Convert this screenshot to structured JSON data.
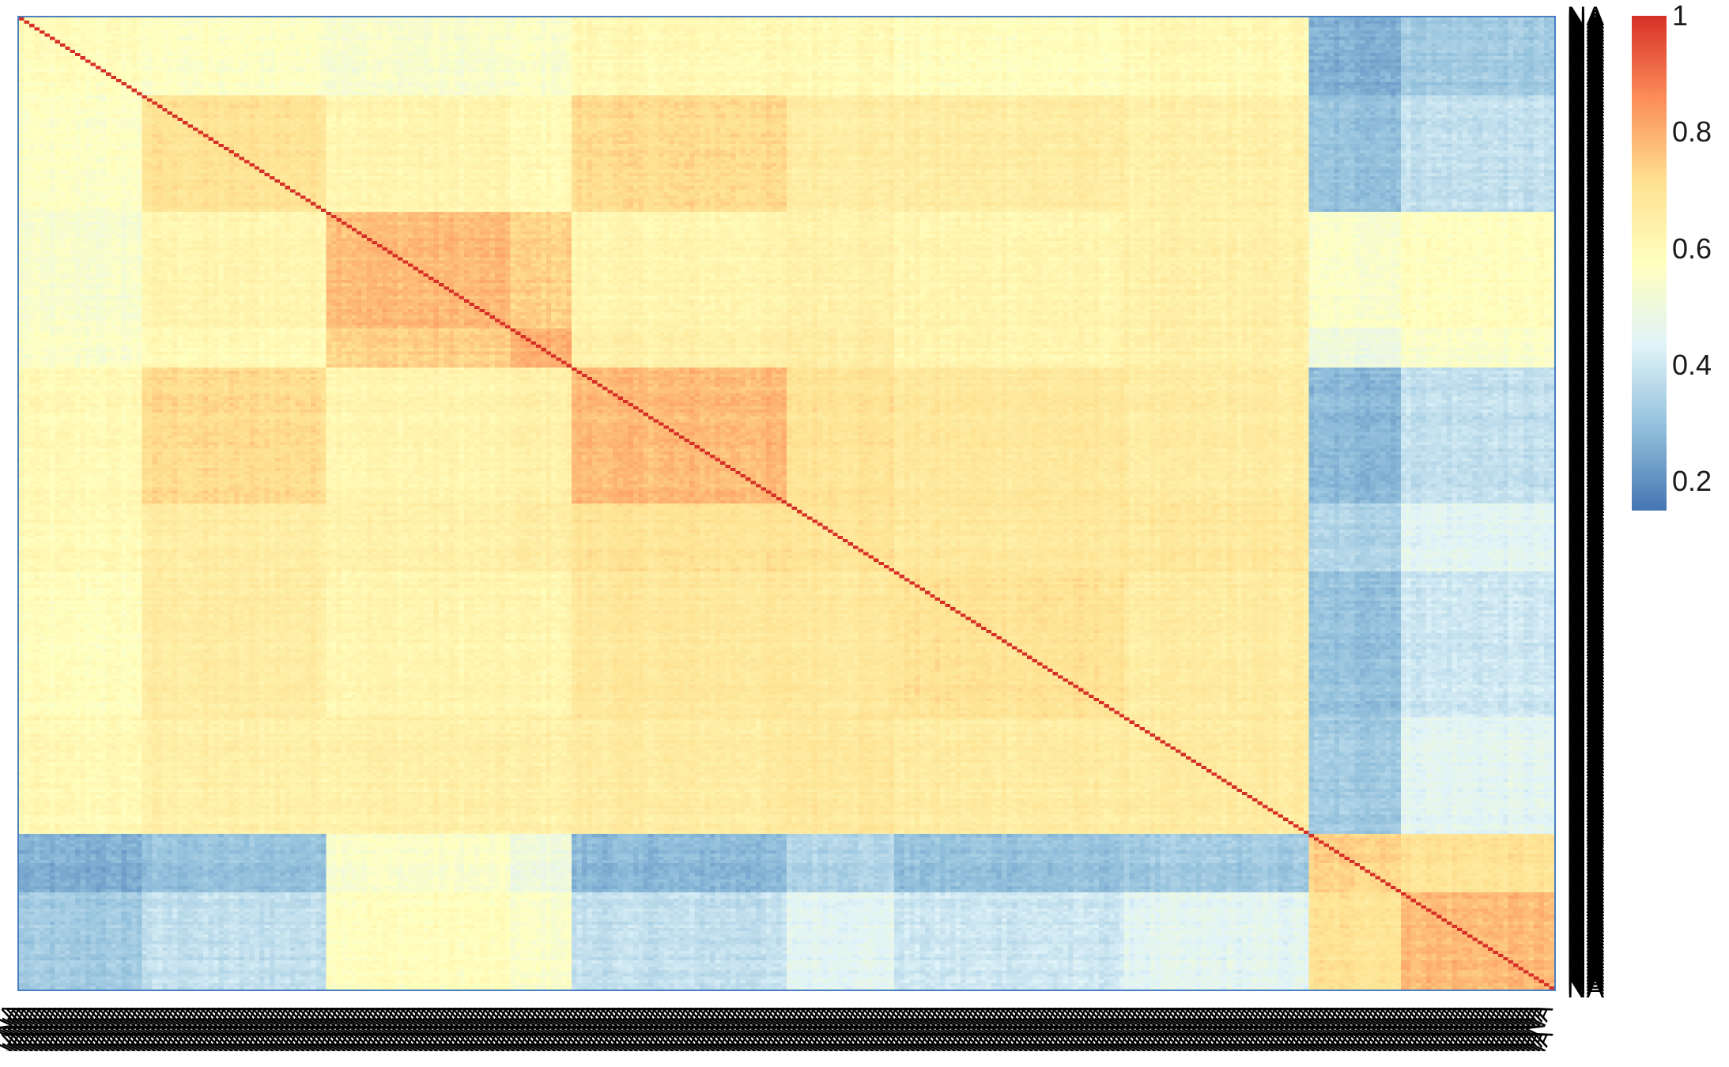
{
  "chart_data": {
    "type": "heatmap",
    "title": "",
    "xlabel": "",
    "ylabel": "",
    "row_count": 300,
    "col_count": 300,
    "row_label_text": "NA",
    "col_label_text": "NA",
    "value_range": [
      0.15,
      1
    ],
    "colorbar": {
      "ticks": [
        "0.2",
        "0.4",
        "0.6",
        "0.8",
        "1"
      ],
      "tick_values": [
        0.2,
        0.4,
        0.6,
        0.8,
        1.0
      ],
      "placement": "right",
      "colors": [
        "#4575b4",
        "#91bfdb",
        "#e0f3f8",
        "#ffffbf",
        "#fee090",
        "#fc8d59",
        "#d73027"
      ]
    },
    "blocks": [
      {
        "cluster": 1,
        "share": 0.08
      },
      {
        "cluster": 2,
        "share": 0.12
      },
      {
        "cluster": 3,
        "share": 0.12
      },
      {
        "cluster": 4,
        "share": 0.04
      },
      {
        "cluster": 5,
        "share": 0.14
      },
      {
        "cluster": 6,
        "share": 0.07
      },
      {
        "cluster": 7,
        "share": 0.15
      },
      {
        "cluster": 8,
        "share": 0.12
      },
      {
        "cluster": 9,
        "share": 0.06
      },
      {
        "cluster": 10,
        "share": 0.05
      }
    ],
    "block_correlation_matrix": [
      [
        0.58,
        0.56,
        0.54,
        0.55,
        0.6,
        0.6,
        0.58,
        0.6,
        0.26,
        0.32
      ],
      [
        0.56,
        0.7,
        0.62,
        0.6,
        0.72,
        0.66,
        0.66,
        0.64,
        0.3,
        0.38
      ],
      [
        0.54,
        0.62,
        0.78,
        0.74,
        0.62,
        0.64,
        0.62,
        0.64,
        0.55,
        0.58
      ],
      [
        0.55,
        0.6,
        0.74,
        0.8,
        0.64,
        0.66,
        0.62,
        0.64,
        0.5,
        0.55
      ],
      [
        0.6,
        0.72,
        0.62,
        0.64,
        0.78,
        0.7,
        0.68,
        0.66,
        0.28,
        0.38
      ],
      [
        0.6,
        0.66,
        0.64,
        0.66,
        0.7,
        0.7,
        0.68,
        0.68,
        0.35,
        0.45
      ],
      [
        0.58,
        0.66,
        0.62,
        0.62,
        0.68,
        0.68,
        0.7,
        0.66,
        0.3,
        0.4
      ],
      [
        0.6,
        0.64,
        0.64,
        0.64,
        0.66,
        0.68,
        0.66,
        0.66,
        0.32,
        0.45
      ],
      [
        0.26,
        0.3,
        0.55,
        0.5,
        0.28,
        0.35,
        0.3,
        0.32,
        0.74,
        0.7
      ],
      [
        0.32,
        0.38,
        0.58,
        0.55,
        0.38,
        0.45,
        0.4,
        0.45,
        0.7,
        0.78
      ]
    ]
  }
}
